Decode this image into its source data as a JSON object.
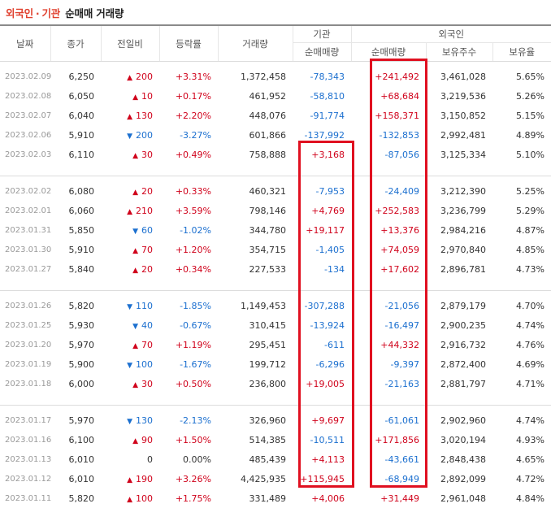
{
  "title": {
    "part1": "외국인",
    "sep": "·",
    "part2": "기관",
    "part3": "순매매 거래량"
  },
  "headers": {
    "date": "날짜",
    "close": "종가",
    "change": "전일비",
    "rate": "등락률",
    "volume": "거래량",
    "inst_group": "기관",
    "foreign_group": "외국인",
    "inst_net": "순매매량",
    "foreign_net": "순매매량",
    "holdings": "보유주수",
    "ratio": "보유율"
  },
  "colors": {
    "up": "#d0021b",
    "down": "#1b6fcf",
    "highlight_box": "#e01020"
  },
  "groups": [
    [
      {
        "date": "2023.02.09",
        "close": "6,250",
        "dir": "up",
        "diff": "200",
        "rate": "+3.31%",
        "vol": "1,372,458",
        "inst": "-78,343",
        "frgn": "+241,492",
        "hold": "3,461,028",
        "ratio": "5.65%"
      },
      {
        "date": "2023.02.08",
        "close": "6,050",
        "dir": "up",
        "diff": "10",
        "rate": "+0.17%",
        "vol": "461,952",
        "inst": "-58,810",
        "frgn": "+68,684",
        "hold": "3,219,536",
        "ratio": "5.26%"
      },
      {
        "date": "2023.02.07",
        "close": "6,040",
        "dir": "up",
        "diff": "130",
        "rate": "+2.20%",
        "vol": "448,076",
        "inst": "-91,774",
        "frgn": "+158,371",
        "hold": "3,150,852",
        "ratio": "5.15%"
      },
      {
        "date": "2023.02.06",
        "close": "5,910",
        "dir": "down",
        "diff": "200",
        "rate": "-3.27%",
        "vol": "601,866",
        "inst": "-137,992",
        "frgn": "-132,853",
        "hold": "2,992,481",
        "ratio": "4.89%"
      },
      {
        "date": "2023.02.03",
        "close": "6,110",
        "dir": "up",
        "diff": "30",
        "rate": "+0.49%",
        "vol": "758,888",
        "inst": "+3,168",
        "frgn": "-87,056",
        "hold": "3,125,334",
        "ratio": "5.10%"
      }
    ],
    [
      {
        "date": "2023.02.02",
        "close": "6,080",
        "dir": "up",
        "diff": "20",
        "rate": "+0.33%",
        "vol": "460,321",
        "inst": "-7,953",
        "frgn": "-24,409",
        "hold": "3,212,390",
        "ratio": "5.25%"
      },
      {
        "date": "2023.02.01",
        "close": "6,060",
        "dir": "up",
        "diff": "210",
        "rate": "+3.59%",
        "vol": "798,146",
        "inst": "+4,769",
        "frgn": "+252,583",
        "hold": "3,236,799",
        "ratio": "5.29%"
      },
      {
        "date": "2023.01.31",
        "close": "5,850",
        "dir": "down",
        "diff": "60",
        "rate": "-1.02%",
        "vol": "344,780",
        "inst": "+19,117",
        "frgn": "+13,376",
        "hold": "2,984,216",
        "ratio": "4.87%"
      },
      {
        "date": "2023.01.30",
        "close": "5,910",
        "dir": "up",
        "diff": "70",
        "rate": "+1.20%",
        "vol": "354,715",
        "inst": "-1,405",
        "frgn": "+74,059",
        "hold": "2,970,840",
        "ratio": "4.85%"
      },
      {
        "date": "2023.01.27",
        "close": "5,840",
        "dir": "up",
        "diff": "20",
        "rate": "+0.34%",
        "vol": "227,533",
        "inst": "-134",
        "frgn": "+17,602",
        "hold": "2,896,781",
        "ratio": "4.73%"
      }
    ],
    [
      {
        "date": "2023.01.26",
        "close": "5,820",
        "dir": "down",
        "diff": "110",
        "rate": "-1.85%",
        "vol": "1,149,453",
        "inst": "-307,288",
        "frgn": "-21,056",
        "hold": "2,879,179",
        "ratio": "4.70%"
      },
      {
        "date": "2023.01.25",
        "close": "5,930",
        "dir": "down",
        "diff": "40",
        "rate": "-0.67%",
        "vol": "310,415",
        "inst": "-13,924",
        "frgn": "-16,497",
        "hold": "2,900,235",
        "ratio": "4.74%"
      },
      {
        "date": "2023.01.20",
        "close": "5,970",
        "dir": "up",
        "diff": "70",
        "rate": "+1.19%",
        "vol": "295,451",
        "inst": "-611",
        "frgn": "+44,332",
        "hold": "2,916,732",
        "ratio": "4.76%"
      },
      {
        "date": "2023.01.19",
        "close": "5,900",
        "dir": "down",
        "diff": "100",
        "rate": "-1.67%",
        "vol": "199,712",
        "inst": "-6,296",
        "frgn": "-9,397",
        "hold": "2,872,400",
        "ratio": "4.69%"
      },
      {
        "date": "2023.01.18",
        "close": "6,000",
        "dir": "up",
        "diff": "30",
        "rate": "+0.50%",
        "vol": "236,800",
        "inst": "+19,005",
        "frgn": "-21,163",
        "hold": "2,881,797",
        "ratio": "4.71%"
      }
    ],
    [
      {
        "date": "2023.01.17",
        "close": "5,970",
        "dir": "down",
        "diff": "130",
        "rate": "-2.13%",
        "vol": "326,960",
        "inst": "+9,697",
        "frgn": "-61,061",
        "hold": "2,902,960",
        "ratio": "4.74%"
      },
      {
        "date": "2023.01.16",
        "close": "6,100",
        "dir": "up",
        "diff": "90",
        "rate": "+1.50%",
        "vol": "514,385",
        "inst": "-10,511",
        "frgn": "+171,856",
        "hold": "3,020,194",
        "ratio": "4.93%"
      },
      {
        "date": "2023.01.13",
        "close": "6,010",
        "dir": "none",
        "diff": "0",
        "rate": "0.00%",
        "vol": "485,439",
        "inst": "+4,113",
        "frgn": "-43,661",
        "hold": "2,848,438",
        "ratio": "4.65%"
      },
      {
        "date": "2023.01.12",
        "close": "6,010",
        "dir": "up",
        "diff": "190",
        "rate": "+3.26%",
        "vol": "4,425,935",
        "inst": "+115,945",
        "frgn": "-68,949",
        "hold": "2,892,099",
        "ratio": "4.72%"
      },
      {
        "date": "2023.01.11",
        "close": "5,820",
        "dir": "up",
        "diff": "100",
        "rate": "+1.75%",
        "vol": "331,489",
        "inst": "+4,006",
        "frgn": "+31,449",
        "hold": "2,961,048",
        "ratio": "4.84%"
      }
    ]
  ]
}
